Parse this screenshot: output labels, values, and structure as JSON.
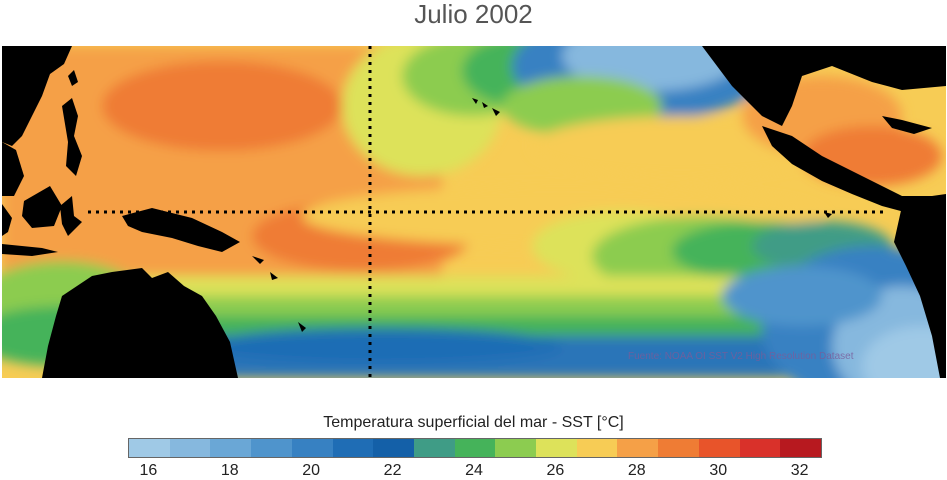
{
  "title": "Julio 2002",
  "source_note": "Fuente: NOAA OI SST V2 High Resolution Dataset",
  "colorbar": {
    "label": "Temperatura superficial del mar - SST  [°C]",
    "colors": [
      "#9fc9e6",
      "#86b8de",
      "#6aa7d6",
      "#4f94cc",
      "#3781c2",
      "#1f6db5",
      "#1460a8",
      "#3f9c86",
      "#45b35a",
      "#8ccc50",
      "#dde25a",
      "#f7cc55",
      "#f5a047",
      "#ef7c34",
      "#e8542a",
      "#d9312a",
      "#b7191f"
    ],
    "ticks": [
      "16",
      "18",
      "20",
      "22",
      "24",
      "26",
      "28",
      "30",
      "32"
    ],
    "tick_positions": [
      0.5,
      2.5,
      4.5,
      6.5,
      8.5,
      10.5,
      12.5,
      14.5,
      16.5
    ]
  },
  "map": {
    "ocean_colors": {
      "cold_blue": "#2a74b8",
      "light_blue": "#8dbfe3",
      "teal": "#3f9c86",
      "green": "#45b35a",
      "light_green": "#8ccc50",
      "yellow": "#dde25a",
      "light_orange": "#f7cc55",
      "orange": "#f5a047",
      "dark_orange": "#ef7c34",
      "red": "#e8542a"
    },
    "land_color": "#000000",
    "reference_lines": [
      "equator",
      "dateline"
    ]
  }
}
